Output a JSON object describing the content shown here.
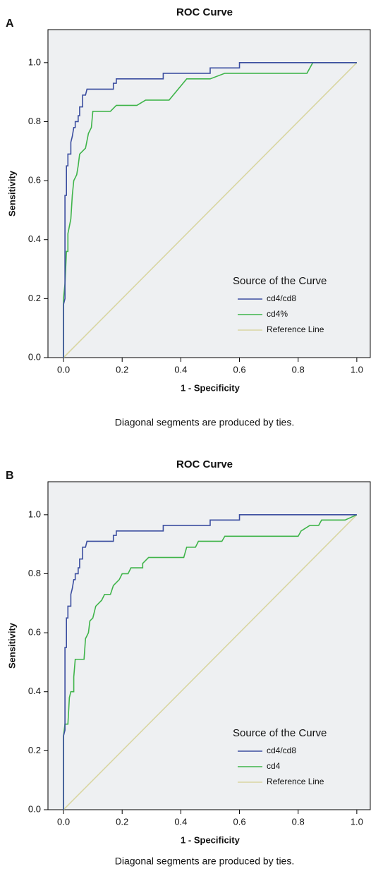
{
  "chart_data": [
    {
      "type": "line",
      "panel_label": "A",
      "title": "ROC Curve",
      "x_label": "1 - Specificity",
      "y_label": "Sensitivity",
      "footnote": "Diagonal segments are produced by ties.",
      "legend_title": "Source of the Curve",
      "legend_position": "lower right",
      "xlim": [
        -0.053,
        1.046
      ],
      "ylim": [
        0,
        1.112
      ],
      "xticks": [
        {
          "value": 0,
          "label": "0.0"
        },
        0.2,
        0.4,
        0.6,
        0.8,
        {
          "value": 1,
          "label": "1.0"
        }
      ],
      "yticks": [
        {
          "value": 0,
          "label": "0.0"
        },
        0.2,
        0.4,
        0.6,
        0.8,
        {
          "value": 1,
          "label": "1.0"
        }
      ],
      "series": [
        {
          "name": "cd4/cd8",
          "color": "#3b4ea0",
          "x": [
            0,
            0,
            0.005,
            0.005,
            0.01,
            0.01,
            0.015,
            0.015,
            0.025,
            0.025,
            0.03,
            0.035,
            0.04,
            0.04,
            0.05,
            0.05,
            0.055,
            0.055,
            0.065,
            0.065,
            0.075,
            0.08,
            0.17,
            0.17,
            0.18,
            0.18,
            0.34,
            0.34,
            0.5,
            0.5,
            0.6,
            0.6,
            1
          ],
          "values": [
            0,
            0.18,
            0.2,
            0.55,
            0.55,
            0.65,
            0.65,
            0.69,
            0.69,
            0.73,
            0.75,
            0.78,
            0.78,
            0.8,
            0.8,
            0.82,
            0.82,
            0.85,
            0.85,
            0.89,
            0.89,
            0.91,
            0.91,
            0.93,
            0.93,
            0.945,
            0.945,
            0.964,
            0.964,
            0.982,
            0.982,
            1,
            1
          ]
        },
        {
          "name": "cd4%",
          "color": "#3fb44a",
          "x": [
            0,
            0,
            0.005,
            0.01,
            0.015,
            0.015,
            0.025,
            0.03,
            0.035,
            0.045,
            0.05,
            0.055,
            0.075,
            0.085,
            0.095,
            0.1,
            0.16,
            0.18,
            0.25,
            0.28,
            0.36,
            0.42,
            0.5,
            0.55,
            0.83,
            0.85,
            1
          ],
          "values": [
            0,
            0.2,
            0.25,
            0.36,
            0.36,
            0.42,
            0.47,
            0.55,
            0.6,
            0.62,
            0.65,
            0.69,
            0.71,
            0.76,
            0.78,
            0.835,
            0.835,
            0.855,
            0.855,
            0.873,
            0.873,
            0.945,
            0.945,
            0.964,
            0.964,
            1,
            1
          ]
        },
        {
          "name": "Reference Line",
          "color": "#d9d6a2",
          "x": [
            0,
            1
          ],
          "values": [
            0,
            1
          ]
        }
      ]
    },
    {
      "type": "line",
      "panel_label": "B",
      "title": "ROC Curve",
      "x_label": "1 - Specificity",
      "y_label": "Sensitivity",
      "footnote": "Diagonal segments are produced by ties.",
      "legend_title": "Source of the Curve",
      "legend_position": "lower right",
      "xlim": [
        -0.053,
        1.046
      ],
      "ylim": [
        0,
        1.112
      ],
      "xticks": [
        {
          "value": 0,
          "label": "0.0"
        },
        0.2,
        0.4,
        0.6,
        0.8,
        {
          "value": 1,
          "label": "1.0"
        }
      ],
      "yticks": [
        {
          "value": 0,
          "label": "0.0"
        },
        0.2,
        0.4,
        0.6,
        0.8,
        {
          "value": 1,
          "label": "1.0"
        }
      ],
      "series": [
        {
          "name": "cd4/cd8",
          "color": "#3b4ea0",
          "x": [
            0,
            0,
            0.005,
            0.005,
            0.01,
            0.01,
            0.015,
            0.015,
            0.025,
            0.025,
            0.03,
            0.035,
            0.04,
            0.04,
            0.05,
            0.05,
            0.055,
            0.055,
            0.065,
            0.065,
            0.075,
            0.08,
            0.17,
            0.17,
            0.18,
            0.18,
            0.34,
            0.34,
            0.5,
            0.5,
            0.6,
            0.6,
            1
          ],
          "values": [
            0,
            0.25,
            0.27,
            0.55,
            0.55,
            0.65,
            0.65,
            0.69,
            0.69,
            0.73,
            0.75,
            0.78,
            0.78,
            0.8,
            0.8,
            0.82,
            0.82,
            0.85,
            0.85,
            0.89,
            0.89,
            0.91,
            0.91,
            0.93,
            0.93,
            0.945,
            0.945,
            0.964,
            0.964,
            0.982,
            0.982,
            1,
            1
          ]
        },
        {
          "name": "cd4",
          "color": "#3fb44a",
          "x": [
            0,
            0,
            0.005,
            0.015,
            0.02,
            0.025,
            0.035,
            0.035,
            0.04,
            0.07,
            0.075,
            0.085,
            0.09,
            0.1,
            0.11,
            0.13,
            0.14,
            0.16,
            0.17,
            0.19,
            0.2,
            0.22,
            0.23,
            0.27,
            0.27,
            0.29,
            0.41,
            0.42,
            0.45,
            0.46,
            0.54,
            0.55,
            0.8,
            0.81,
            0.84,
            0.87,
            0.88,
            0.96,
            1
          ],
          "values": [
            0,
            0.25,
            0.29,
            0.29,
            0.38,
            0.4,
            0.4,
            0.45,
            0.51,
            0.51,
            0.58,
            0.6,
            0.64,
            0.65,
            0.69,
            0.71,
            0.73,
            0.73,
            0.76,
            0.78,
            0.8,
            0.8,
            0.82,
            0.82,
            0.835,
            0.855,
            0.855,
            0.89,
            0.89,
            0.91,
            0.91,
            0.927,
            0.927,
            0.945,
            0.964,
            0.964,
            0.982,
            0.982,
            1
          ]
        },
        {
          "name": "Reference Line",
          "color": "#d9d6a2",
          "x": [
            0,
            1
          ],
          "values": [
            0,
            1
          ]
        }
      ]
    }
  ]
}
